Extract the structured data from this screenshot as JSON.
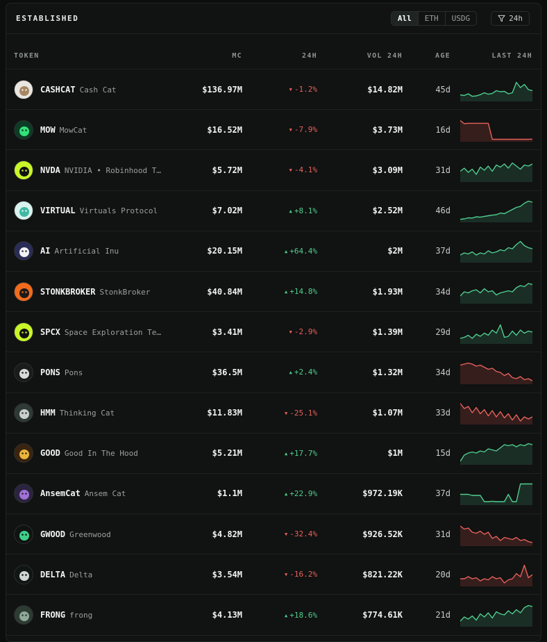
{
  "header": {
    "title": "ESTABLISHED"
  },
  "filters": {
    "segments": [
      {
        "label": "All",
        "active": true
      },
      {
        "label": "ETH",
        "active": false
      },
      {
        "label": "USDG",
        "active": false
      }
    ],
    "time_label": "24h",
    "filter_icon": "filter-icon"
  },
  "columns": {
    "token": "TOKEN",
    "mc": "MC",
    "change": "24H",
    "vol": "VOL 24H",
    "age": "AGE",
    "last": "LAST 24H"
  },
  "colors": {
    "up": "#4fcf8f",
    "down": "#e8625a",
    "up_fill": "#1a2e26",
    "down_fill": "#361e1d"
  },
  "tokens": [
    {
      "symbol": "CASHCAT",
      "name": "Cash Cat",
      "mc": "$136.97M",
      "change": "-1.2%",
      "dir": "down",
      "vol": "$14.82M",
      "age": "45d",
      "spark_dir": "up",
      "avatar": [
        "#e9e6e1",
        "#a68663"
      ],
      "spark": [
        0.25,
        0.22,
        0.3,
        0.18,
        0.2,
        0.26,
        0.35,
        0.28,
        0.32,
        0.45,
        0.4,
        0.42,
        0.3,
        0.35,
        0.85,
        0.6,
        0.75,
        0.5,
        0.45
      ]
    },
    {
      "symbol": "MOW",
      "name": "MowCat",
      "mc": "$16.52M",
      "change": "-7.9%",
      "dir": "down",
      "vol": "$3.73M",
      "age": "16d",
      "spark_dir": "down",
      "avatar": [
        "#0d3b25",
        "#33e07a"
      ],
      "spark": [
        0.95,
        0.8,
        0.82,
        0.82,
        0.82,
        0.82,
        0.82,
        0.82,
        0.05,
        0.05,
        0.05,
        0.05,
        0.05,
        0.05,
        0.05,
        0.05,
        0.05,
        0.05,
        0.06
      ]
    },
    {
      "symbol": "NVDA",
      "name": "NVIDIA • Robinhood T…",
      "mc": "$5.72M",
      "change": "-4.1%",
      "dir": "down",
      "vol": "$3.09M",
      "age": "31d",
      "spark_dir": "up",
      "avatar": [
        "#c8f52a",
        "#111111"
      ],
      "spark": [
        0.45,
        0.6,
        0.4,
        0.55,
        0.3,
        0.65,
        0.5,
        0.7,
        0.45,
        0.75,
        0.65,
        0.8,
        0.6,
        0.85,
        0.7,
        0.55,
        0.75,
        0.7,
        0.8
      ]
    },
    {
      "symbol": "VIRTUAL",
      "name": "Virtuals Protocol",
      "mc": "$7.02M",
      "change": "+8.1%",
      "dir": "up",
      "vol": "$2.52M",
      "age": "46d",
      "spark_dir": "up",
      "avatar": [
        "#d9f2ee",
        "#3fb8a5"
      ],
      "spark": [
        0.08,
        0.1,
        0.15,
        0.14,
        0.2,
        0.18,
        0.22,
        0.25,
        0.28,
        0.3,
        0.38,
        0.35,
        0.45,
        0.55,
        0.65,
        0.7,
        0.85,
        0.95,
        0.9
      ]
    },
    {
      "symbol": "AI",
      "name": "Artificial Inu",
      "mc": "$20.15M",
      "change": "+64.4%",
      "dir": "up",
      "vol": "$2M",
      "age": "37d",
      "spark_dir": "up",
      "avatar": [
        "#2a2d55",
        "#f2f2f2"
      ],
      "spark": [
        0.3,
        0.4,
        0.35,
        0.45,
        0.3,
        0.4,
        0.35,
        0.5,
        0.4,
        0.45,
        0.55,
        0.5,
        0.65,
        0.6,
        0.8,
        0.95,
        0.75,
        0.65,
        0.6
      ]
    },
    {
      "symbol": "STONKBROKER",
      "name": "StonkBroker",
      "mc": "$40.84M",
      "change": "+14.8%",
      "dir": "up",
      "vol": "$1.93M",
      "age": "34d",
      "spark_dir": "up",
      "avatar": [
        "#f26b1d",
        "#1a1a1a"
      ],
      "spark": [
        0.3,
        0.5,
        0.45,
        0.55,
        0.6,
        0.45,
        0.65,
        0.5,
        0.55,
        0.35,
        0.45,
        0.5,
        0.55,
        0.5,
        0.7,
        0.8,
        0.75,
        0.9,
        0.85
      ]
    },
    {
      "symbol": "SPCX",
      "name": "Space Exploration Te…",
      "mc": "$3.41M",
      "change": "-2.9%",
      "dir": "down",
      "vol": "$1.39M",
      "age": "29d",
      "spark_dir": "up",
      "avatar": [
        "#c8f52a",
        "#111111"
      ],
      "spark": [
        0.2,
        0.25,
        0.35,
        0.2,
        0.4,
        0.3,
        0.45,
        0.35,
        0.6,
        0.45,
        0.85,
        0.25,
        0.3,
        0.55,
        0.35,
        0.6,
        0.45,
        0.55,
        0.5
      ]
    },
    {
      "symbol": "PONS",
      "name": "Pons",
      "mc": "$36.5M",
      "change": "+2.4%",
      "dir": "up",
      "vol": "$1.32M",
      "age": "34d",
      "spark_dir": "down",
      "avatar": [
        "#1a1b1b",
        "#d9d9d9"
      ],
      "spark": [
        0.85,
        0.9,
        0.95,
        0.9,
        0.8,
        0.85,
        0.75,
        0.65,
        0.7,
        0.55,
        0.5,
        0.35,
        0.45,
        0.25,
        0.2,
        0.3,
        0.15,
        0.2,
        0.1
      ]
    },
    {
      "symbol": "HMM",
      "name": "Thinking Cat",
      "mc": "$11.83M",
      "change": "-25.1%",
      "dir": "down",
      "vol": "$1.07M",
      "age": "33d",
      "spark_dir": "down",
      "avatar": [
        "#2f3a36",
        "#c9cfcc"
      ],
      "spark": [
        0.95,
        0.7,
        0.8,
        0.5,
        0.75,
        0.45,
        0.65,
        0.35,
        0.6,
        0.3,
        0.55,
        0.25,
        0.45,
        0.15,
        0.4,
        0.1,
        0.3,
        0.2,
        0.3
      ]
    },
    {
      "symbol": "GOOD",
      "name": "Good In The Hood",
      "mc": "$5.21M",
      "change": "+17.7%",
      "dir": "up",
      "vol": "$1M",
      "age": "15d",
      "spark_dir": "up",
      "avatar": [
        "#3a2410",
        "#e9b53a"
      ],
      "spark": [
        0.1,
        0.4,
        0.5,
        0.55,
        0.5,
        0.6,
        0.55,
        0.7,
        0.65,
        0.6,
        0.75,
        0.9,
        0.85,
        0.9,
        0.8,
        0.9,
        0.85,
        0.95,
        0.9
      ]
    },
    {
      "symbol": "AnsemCat",
      "name": "Ansem Cat",
      "mc": "$1.1M",
      "change": "+22.9%",
      "dir": "up",
      "vol": "$972.19K",
      "age": "37d",
      "spark_dir": "up",
      "avatar": [
        "#2b2440",
        "#a072d6"
      ],
      "spark": [
        0.45,
        0.45,
        0.45,
        0.4,
        0.4,
        0.4,
        0.1,
        0.1,
        0.12,
        0.1,
        0.1,
        0.1,
        0.45,
        0.1,
        0.1,
        0.95,
        0.95,
        0.95,
        0.95
      ]
    },
    {
      "symbol": "GWOOD",
      "name": "Greenwood",
      "mc": "$4.82M",
      "change": "-32.4%",
      "dir": "down",
      "vol": "$926.52K",
      "age": "31d",
      "spark_dir": "down",
      "avatar": [
        "#0f1412",
        "#3ed08a"
      ],
      "spark": [
        0.9,
        0.75,
        0.8,
        0.6,
        0.55,
        0.65,
        0.5,
        0.6,
        0.3,
        0.4,
        0.2,
        0.35,
        0.3,
        0.25,
        0.35,
        0.2,
        0.25,
        0.15,
        0.1
      ]
    },
    {
      "symbol": "DELTA",
      "name": "Delta",
      "mc": "$3.54M",
      "change": "-16.2%",
      "dir": "down",
      "vol": "$821.22K",
      "age": "20d",
      "spark_dir": "down",
      "avatar": [
        "#0f1614",
        "#cfd6d3"
      ],
      "spark": [
        0.3,
        0.3,
        0.4,
        0.3,
        0.35,
        0.2,
        0.3,
        0.25,
        0.4,
        0.3,
        0.35,
        0.1,
        0.25,
        0.3,
        0.55,
        0.4,
        0.95,
        0.35,
        0.5
      ]
    },
    {
      "symbol": "FRONG",
      "name": "frong",
      "mc": "$4.13M",
      "change": "+18.6%",
      "dir": "up",
      "vol": "$774.61K",
      "age": "21d",
      "spark_dir": "up",
      "avatar": [
        "#2e3b33",
        "#8ea99a"
      ],
      "spark": [
        0.2,
        0.4,
        0.3,
        0.45,
        0.25,
        0.55,
        0.4,
        0.6,
        0.35,
        0.65,
        0.55,
        0.5,
        0.7,
        0.55,
        0.75,
        0.6,
        0.85,
        0.95,
        0.9
      ]
    }
  ]
}
